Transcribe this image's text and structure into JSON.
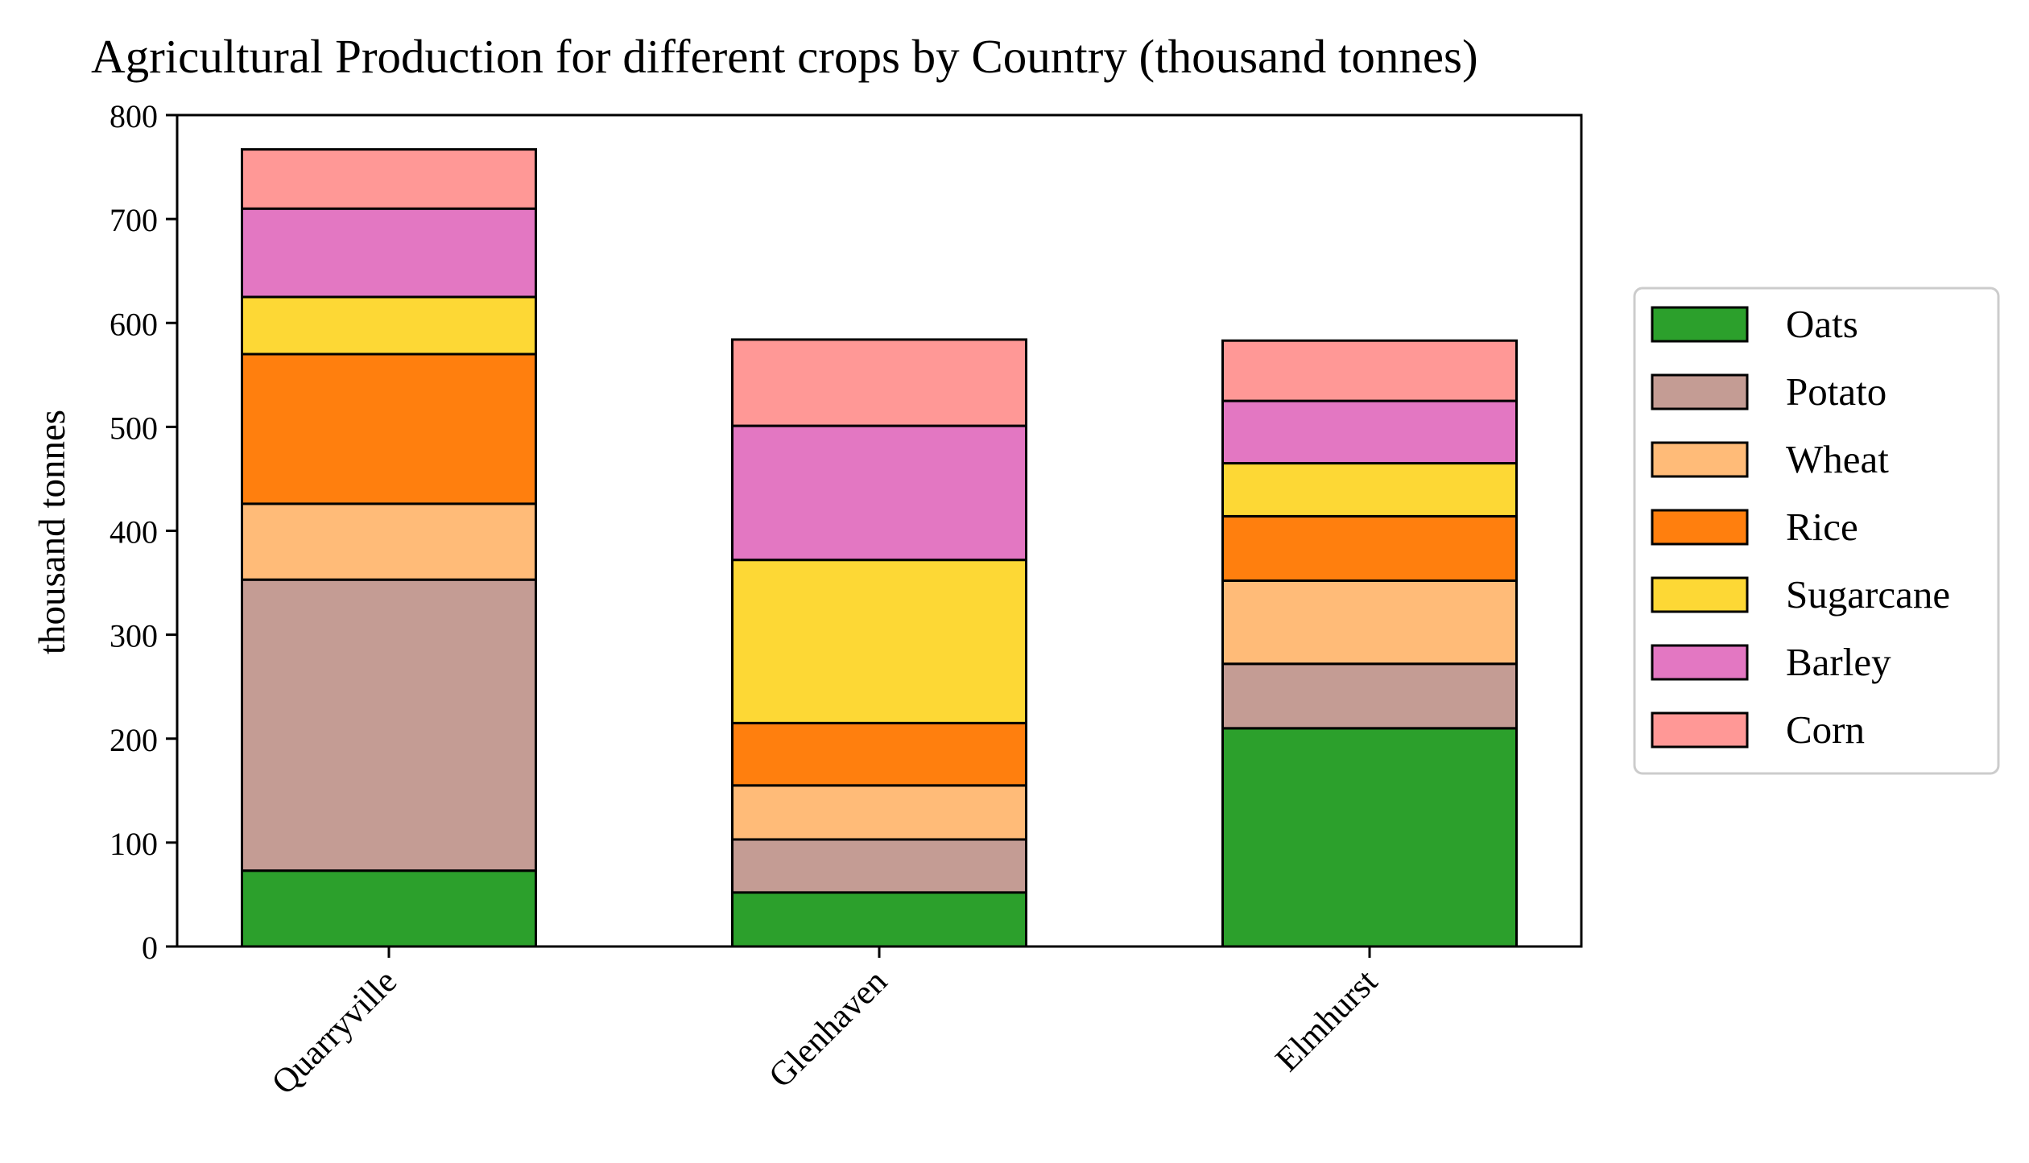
{
  "chart_data": {
    "type": "bar",
    "stacked": true,
    "title": "Agricultural Production for different crops by Country (thousand tonnes)",
    "xlabel": "",
    "ylabel": "thousand tonnes",
    "ylim": [
      0,
      800
    ],
    "yticks": [
      0,
      100,
      200,
      300,
      400,
      500,
      600,
      700,
      800
    ],
    "grid": false,
    "legend_position": "right",
    "categories": [
      "Quarryville",
      "Glenhaven",
      "Elmhurst"
    ],
    "series": [
      {
        "name": "Oats",
        "color": "#2ca02c",
        "values": [
          73,
          52,
          210
        ]
      },
      {
        "name": "Potato",
        "color": "#c49c94",
        "values": [
          280,
          51,
          62
        ]
      },
      {
        "name": "Wheat",
        "color": "#ffbb78",
        "values": [
          73,
          52,
          80
        ]
      },
      {
        "name": "Rice",
        "color": "#ff7f0e",
        "values": [
          144,
          60,
          62
        ]
      },
      {
        "name": "Sugarcane",
        "color": "#fdd835",
        "values": [
          55,
          157,
          51
        ]
      },
      {
        "name": "Barley",
        "color": "#e377c2",
        "values": [
          85,
          129,
          60
        ]
      },
      {
        "name": "Corn",
        "color": "#ff9896",
        "values": [
          57,
          83,
          58
        ]
      }
    ]
  }
}
